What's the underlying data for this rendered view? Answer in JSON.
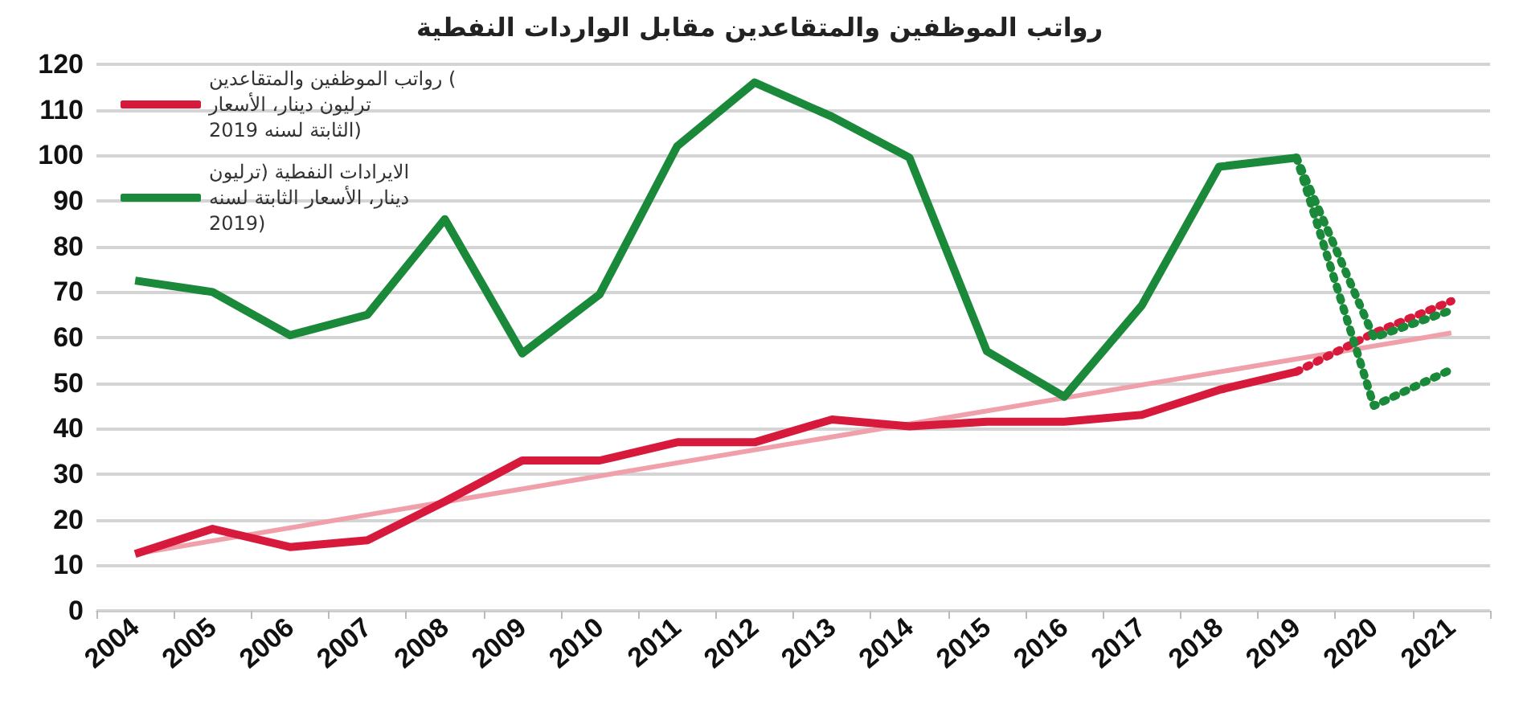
{
  "chart_data": {
    "type": "line",
    "title": "رواتب الموظفين والمتقاعدين مقابل الواردات النفطية",
    "categories": [
      "2004",
      "2005",
      "2006",
      "2007",
      "2008",
      "2009",
      "2010",
      "2011",
      "2012",
      "2013",
      "2014",
      "2015",
      "2016",
      "2017",
      "2018",
      "2019",
      "2020",
      "2021"
    ],
    "ylim": [
      0,
      120
    ],
    "yticks": [
      0,
      10,
      20,
      30,
      40,
      50,
      60,
      70,
      80,
      90,
      100,
      110,
      120
    ],
    "grid": "y",
    "legend": "top left",
    "marker": "none",
    "series": [
      {
        "name": "رواتب الموظفين والمتقاعدين ( ترليون دينار، الأسعار الثابتة لسنه 2019)",
        "color": "#d7193c",
        "line_style": "solid",
        "values": [
          12.5,
          18,
          14,
          15.5,
          24,
          33,
          33,
          37,
          37,
          42,
          40.5,
          41.5,
          41.5,
          43,
          48.5,
          52.5,
          null,
          null
        ]
      },
      {
        "name": "الايرادات النفطية (ترليون دينار، الأسعار الثابتة لسنه 2019)",
        "color": "#1a8a3a",
        "line_style": "solid",
        "values": [
          72.5,
          70,
          60.5,
          65,
          86,
          56.5,
          69.5,
          102,
          116,
          108.5,
          99.5,
          57,
          47,
          67,
          97.5,
          99.5,
          null,
          null
        ]
      },
      {
        "color": "#f0a0aa",
        "line_style": "solid",
        "values": [
          12.5,
          null,
          null,
          null,
          null,
          null,
          null,
          null,
          null,
          null,
          null,
          null,
          null,
          null,
          null,
          null,
          null,
          61
        ]
      },
      {
        "color": "#d7193c",
        "line_style": "dotted",
        "values": [
          null,
          null,
          null,
          null,
          null,
          null,
          null,
          null,
          null,
          null,
          null,
          null,
          null,
          null,
          null,
          52.5,
          61,
          68
        ]
      },
      {
        "color": "#1a8a3a",
        "line_style": "dotted",
        "values": [
          null,
          null,
          null,
          null,
          null,
          null,
          null,
          null,
          null,
          null,
          null,
          null,
          null,
          null,
          null,
          99.5,
          60,
          66
        ]
      },
      {
        "color": "#1a8a3a",
        "line_style": "dotted",
        "values": [
          null,
          null,
          null,
          null,
          null,
          null,
          null,
          null,
          null,
          null,
          null,
          null,
          null,
          null,
          null,
          99.5,
          45,
          53
        ]
      }
    ]
  }
}
